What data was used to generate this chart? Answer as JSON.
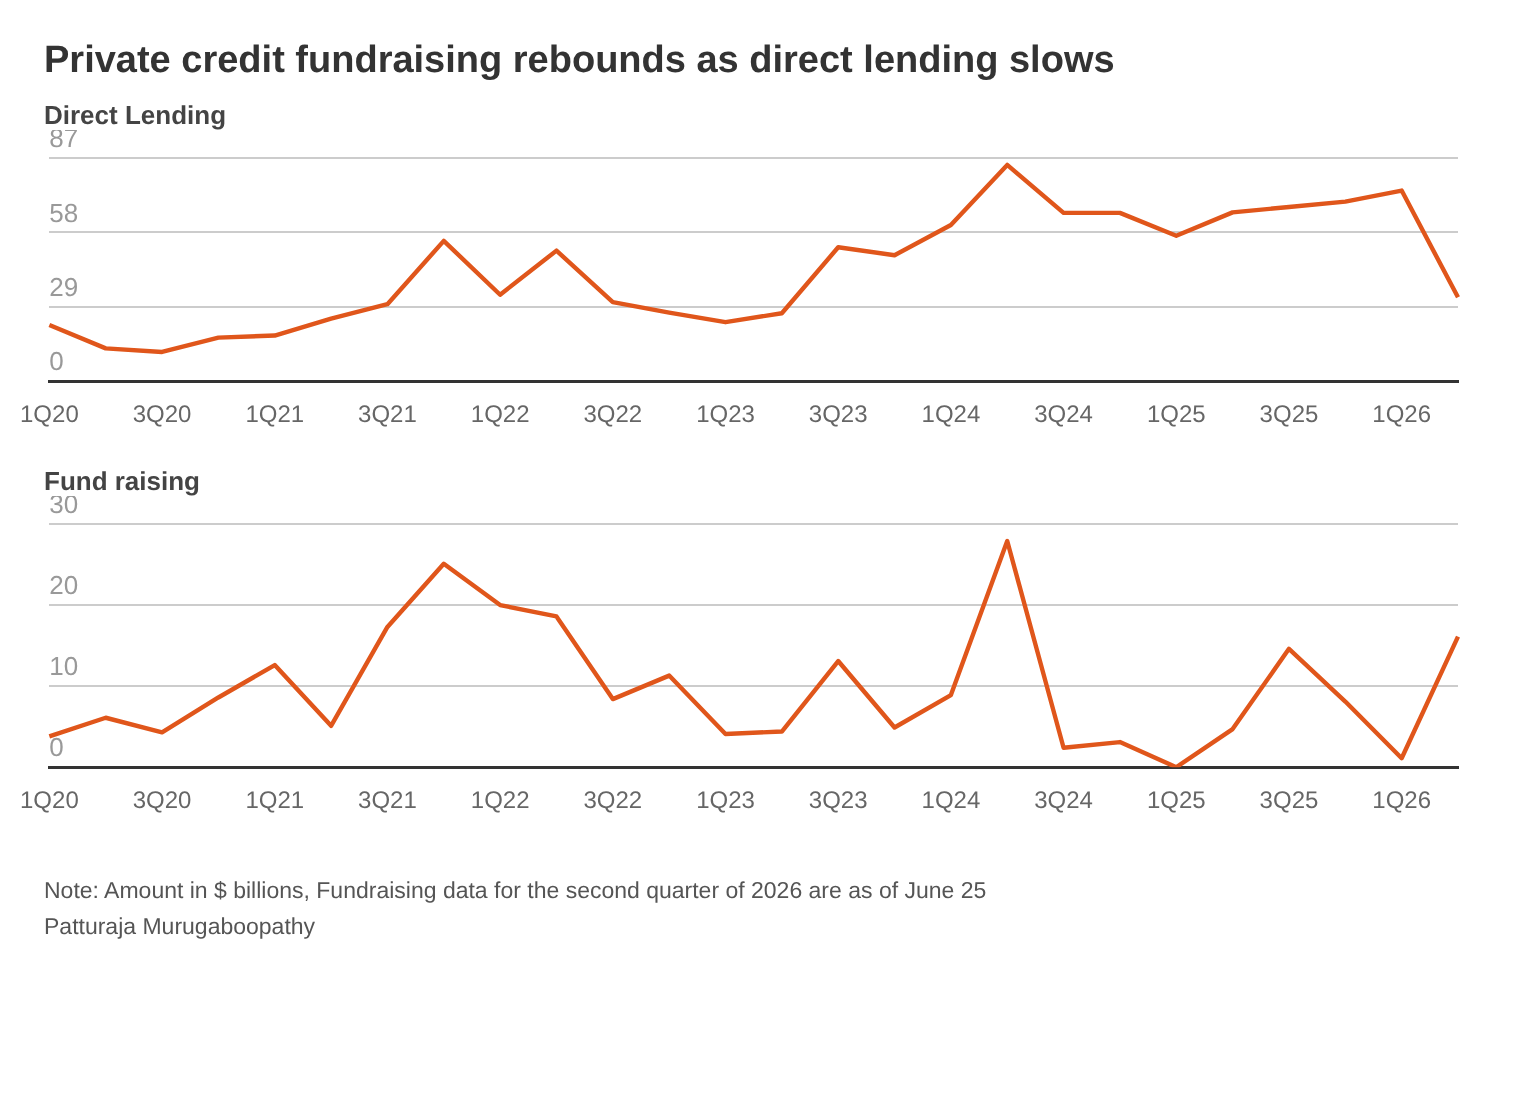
{
  "chart_data": [
    {
      "type": "line",
      "title": "Private credit fundraising rebounds as direct lending slows",
      "subtitle": "Direct Lending",
      "categories": [
        "1Q20",
        null,
        "3Q20",
        null,
        "1Q21",
        null,
        "3Q21",
        null,
        "1Q22",
        null,
        "3Q22",
        null,
        "1Q23",
        null,
        "3Q23",
        null,
        "1Q24",
        null,
        "3Q24",
        null,
        "1Q25",
        null,
        "3Q25",
        null,
        "1Q26",
        null
      ],
      "series": [
        {
          "color": "#e0561b",
          "values": [
            21.9,
            12.8,
            11.4,
            17.0,
            17.8,
            24.4,
            30.0,
            54.7,
            33.7,
            50.9,
            30.8,
            26.7,
            23.0,
            26.5,
            52.2,
            49.1,
            60.9,
            84.3,
            65.6,
            65.6,
            56.7,
            65.8,
            67.9,
            70.0,
            74.3,
            32.7
          ]
        }
      ],
      "ylim": [
        0,
        87
      ],
      "yticks": [
        0,
        29,
        58,
        87
      ],
      "grid": "y",
      "legend": false,
      "marker": "none",
      "line_style": "solid"
    },
    {
      "type": "line",
      "title": "Fund raising",
      "categories": [
        "1Q20",
        null,
        "3Q20",
        null,
        "1Q21",
        null,
        "3Q21",
        null,
        "1Q22",
        null,
        "3Q22",
        null,
        "1Q23",
        null,
        "3Q23",
        null,
        "1Q24",
        null,
        "3Q24",
        null,
        "1Q25",
        null,
        "3Q25",
        null,
        "1Q26",
        null
      ],
      "series": [
        {
          "color": "#e0561b",
          "values": [
            3.8,
            6.1,
            4.3,
            8.6,
            12.6,
            5.1,
            17.3,
            25.1,
            20.0,
            18.6,
            8.4,
            11.3,
            4.1,
            4.4,
            13.1,
            4.9,
            8.9,
            27.9,
            2.4,
            3.1,
            0,
            4.7,
            14.6,
            8.1,
            1.1,
            16.1
          ]
        }
      ],
      "ylim": [
        0,
        30
      ],
      "yticks": [
        0,
        10,
        20,
        30
      ],
      "grid": "y",
      "legend": false,
      "marker": "none",
      "line_style": "solid",
      "annotations": [
        "Note: Amount in $ billions, Fundraising data for the second quarter of 2026 are as of June 25",
        "Patturaja Murugaboopathy"
      ]
    }
  ]
}
